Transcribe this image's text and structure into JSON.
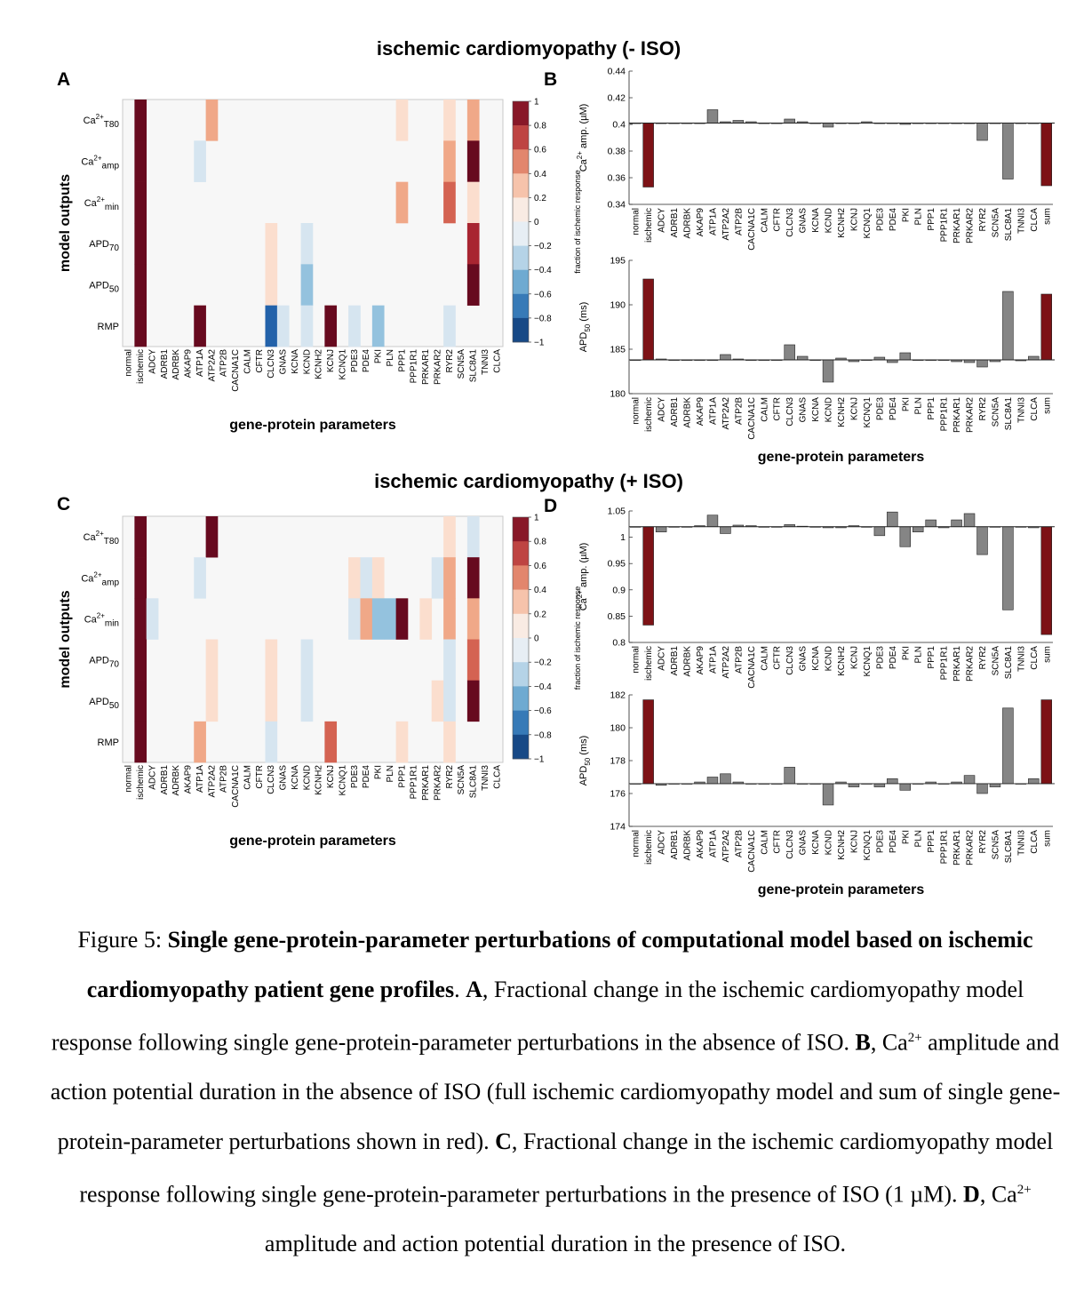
{
  "titles": {
    "top": "ischemic cardiomyopathy (- ISO)",
    "bottom": "ischemic cardiomyopathy (+ ISO)"
  },
  "panel_letters": [
    "A",
    "B",
    "C",
    "D"
  ],
  "colors": {
    "ischemic_bar": "#7d1216",
    "sum_bar": "#7d1216",
    "other_bar": "#858585",
    "heatmap_background": "#f7f7f7"
  },
  "caption": {
    "figure_label": "Figure  5: ",
    "bold_title": "Single gene-protein-parameter perturbations of computational model based on ischemic cardiomyopathy patient gene profiles",
    "period": ". ",
    "A_label": "A",
    "A_text": ", Fractional change in the ischemic cardiomyopathy model response following single gene-protein-parameter perturbations in the absence of ISO. ",
    "B_label": "B",
    "B_text_1": ", Ca",
    "B_sup": "2+",
    "B_text_2": " amplitude and action potential duration in the absence of ISO (full ischemic cardiomyopathy model and sum of single gene-protein-parameter perturbations shown in red). ",
    "C_label": "C",
    "C_text": ", Fractional change in the ischemic cardiomyopathy model response following single gene-protein-parameter perturbations in the presence of ISO (1 µM). ",
    "D_label": "D",
    "D_text_1": ", Ca",
    "D_sup": "2+",
    "D_text_2": " amplitude and action potential duration in the presence of ISO."
  },
  "chart_data": [
    {
      "id": "A",
      "type": "heatmap",
      "xlabel": "gene-protein parameters",
      "ylabel": "model outputs",
      "columns": [
        "normal",
        "ischemic",
        "ADCY",
        "ADRB1",
        "ADRBK",
        "AKAP9",
        "ATP1A",
        "ATP2A2",
        "ATP2B",
        "CACNA1C",
        "CALM",
        "CFTR",
        "CLCN3",
        "GNAS",
        "KCNA",
        "KCND",
        "KCNH2",
        "KCNJ",
        "KCNQ1",
        "PDE3",
        "PDE4",
        "PKI",
        "PLN",
        "PPP1",
        "PPP1R1",
        "PRKAR1",
        "PRKAR2",
        "RYR2",
        "SCN5A",
        "SLC8A1",
        "TNNI3",
        "CLCA"
      ],
      "rows": [
        {
          "base": "Ca",
          "sup": "2+",
          "sub": "T80"
        },
        {
          "base": "Ca",
          "sup": "2+",
          "sub": "amp"
        },
        {
          "base": "Ca",
          "sup": "2+",
          "sub": "min"
        },
        {
          "base": "APD",
          "sup": "",
          "sub": "70"
        },
        {
          "base": "APD",
          "sup": "",
          "sub": "50"
        },
        {
          "base": "RMP",
          "sup": "",
          "sub": ""
        }
      ],
      "values": [
        [
          0,
          1,
          0,
          0,
          0,
          0,
          0,
          0.4,
          0,
          0,
          0,
          0,
          0,
          0,
          0,
          0,
          0,
          0,
          0,
          0,
          0,
          0,
          0,
          0.2,
          0,
          0,
          0,
          0.2,
          0,
          0.4,
          0,
          0
        ],
        [
          0,
          1,
          0,
          0,
          0,
          0,
          -0.2,
          0,
          0,
          0,
          0,
          0,
          0,
          0,
          0,
          0,
          0,
          0,
          0,
          0,
          0,
          0,
          0,
          0,
          0,
          0,
          0,
          0.4,
          0,
          1,
          0,
          0
        ],
        [
          0,
          1,
          0,
          0,
          0,
          0,
          0,
          0,
          0,
          0,
          0,
          0,
          0,
          0,
          0,
          0,
          0,
          0,
          0,
          0,
          0,
          0,
          0,
          0.4,
          0,
          0,
          0,
          0.6,
          0,
          0.2,
          0,
          0
        ],
        [
          0,
          1,
          0,
          0,
          0,
          0,
          0,
          0,
          0,
          0,
          0,
          0,
          0.2,
          0,
          0,
          -0.2,
          0,
          0,
          0,
          0,
          0,
          0,
          0,
          0,
          0,
          0,
          0,
          0,
          0,
          0.8,
          0,
          0
        ],
        [
          0,
          1,
          0,
          0,
          0,
          0,
          0,
          0,
          0,
          0,
          0,
          0,
          0.2,
          0,
          0,
          -0.4,
          0,
          0,
          0,
          0,
          0,
          0,
          0,
          0,
          0,
          0,
          0,
          0,
          0,
          1,
          0,
          0
        ],
        [
          0,
          1,
          0,
          0,
          0,
          0,
          1,
          0,
          0,
          0,
          0,
          0,
          -0.8,
          -0.2,
          0,
          -0.2,
          0,
          1,
          0,
          -0.2,
          0,
          -0.4,
          0,
          0,
          0,
          0,
          0,
          -0.2,
          0,
          0,
          0,
          0
        ]
      ],
      "colorbar": {
        "label": "fraction of ischemic response",
        "ticks": [
          1,
          0.8,
          0.6,
          0.4,
          0.2,
          0,
          -0.2,
          -0.4,
          -0.6,
          -0.8,
          -1
        ],
        "tick_labels": [
          "1",
          "0.8",
          "0.6",
          "0.4",
          "0.2",
          "0",
          "−0.2",
          "−0.4",
          "−0.6",
          "−0.8",
          "−1"
        ]
      }
    },
    {
      "id": "B1",
      "type": "bar",
      "ylabel": {
        "pre": "Ca",
        "sup": "2+",
        "post": " amp. (µM)"
      },
      "categories": [
        "normal",
        "ischemic",
        "ADCY",
        "ADRB1",
        "ADRBK",
        "AKAP9",
        "ATP1A",
        "ATP2A2",
        "ATP2B",
        "CACNA1C",
        "CALM",
        "CFTR",
        "CLCN3",
        "GNAS",
        "KCNA",
        "KCND",
        "KCNH2",
        "KCNJ",
        "KCNQ1",
        "PDE3",
        "PDE4",
        "PKI",
        "PLN",
        "PPP1",
        "PPP1R1",
        "PRKAR1",
        "PRKAR2",
        "RYR2",
        "SCN5A",
        "SLC8A1",
        "TNNI3",
        "CLCA",
        "sum"
      ],
      "baseline": 0.401,
      "values": [
        0.401,
        0.353,
        0.401,
        0.401,
        0.401,
        0.401,
        0.411,
        0.402,
        0.403,
        0.402,
        0.401,
        0.401,
        0.404,
        0.402,
        0.401,
        0.398,
        0.401,
        0.401,
        0.402,
        0.401,
        0.401,
        0.4,
        0.401,
        0.401,
        0.401,
        0.401,
        0.401,
        0.388,
        0.401,
        0.359,
        0.401,
        0.401,
        0.354
      ],
      "ylim": [
        0.34,
        0.44
      ],
      "yticks": [
        0.34,
        0.36,
        0.38,
        0.4,
        0.42,
        0.44
      ],
      "ytick_labels": [
        "0.34",
        "0.36",
        "0.38",
        "0.4",
        "0.42",
        "0.44"
      ],
      "show_xlabel": false
    },
    {
      "id": "B2",
      "type": "bar",
      "ylabel": {
        "pre": "APD",
        "sub": "50",
        "post": " (ms)"
      },
      "xlabel": "gene-protein parameters",
      "categories": [
        "normal",
        "ischemic",
        "ADCY",
        "ADRB1",
        "ADRBK",
        "AKAP9",
        "ATP1A",
        "ATP2A2",
        "ATP2B",
        "CACNA1C",
        "CALM",
        "CFTR",
        "CLCN3",
        "GNAS",
        "KCNA",
        "KCND",
        "KCNH2",
        "KCNJ",
        "KCNQ1",
        "PDE3",
        "PDE4",
        "PKI",
        "PLN",
        "PPP1",
        "PPP1R1",
        "PRKAR1",
        "PRKAR2",
        "RYR2",
        "SCN5A",
        "SLC8A1",
        "TNNI3",
        "CLCA",
        "sum"
      ],
      "baseline": 183.8,
      "values": [
        183.8,
        192.9,
        183.9,
        183.8,
        183.8,
        183.8,
        183.8,
        184.4,
        183.9,
        183.8,
        183.8,
        183.8,
        185.5,
        184.2,
        183.8,
        181.3,
        184.0,
        183.6,
        183.8,
        184.1,
        183.5,
        184.6,
        183.8,
        183.8,
        183.8,
        183.6,
        183.5,
        183.0,
        183.6,
        191.5,
        183.7,
        184.2,
        191.2
      ],
      "ylim": [
        180,
        195
      ],
      "yticks": [
        180,
        185,
        190,
        195
      ],
      "ytick_labels": [
        "180",
        "185",
        "190",
        "195"
      ],
      "show_xlabel": true
    },
    {
      "id": "C",
      "type": "heatmap",
      "xlabel": "gene-protein parameters",
      "ylabel": "model outputs",
      "columns": [
        "normal",
        "ischemic",
        "ADCY",
        "ADRB1",
        "ADRBK",
        "AKAP9",
        "ATP1A",
        "ATP2A2",
        "ATP2B",
        "CACNA1C",
        "CALM",
        "CFTR",
        "CLCN3",
        "GNAS",
        "KCNA",
        "KCND",
        "KCNH2",
        "KCNJ",
        "KCNQ1",
        "PDE3",
        "PDE4",
        "PKI",
        "PLN",
        "PPP1",
        "PPP1R1",
        "PRKAR1",
        "PRKAR2",
        "RYR2",
        "SCN5A",
        "SLC8A1",
        "TNNI3",
        "CLCA"
      ],
      "rows": [
        {
          "base": "Ca",
          "sup": "2+",
          "sub": "T80"
        },
        {
          "base": "Ca",
          "sup": "2+",
          "sub": "amp"
        },
        {
          "base": "Ca",
          "sup": "2+",
          "sub": "min"
        },
        {
          "base": "APD",
          "sup": "",
          "sub": "70"
        },
        {
          "base": "APD",
          "sup": "",
          "sub": "50"
        },
        {
          "base": "RMP",
          "sup": "",
          "sub": ""
        }
      ],
      "values": [
        [
          0,
          1,
          0,
          0,
          0,
          0,
          0,
          1,
          0,
          0,
          0,
          0,
          0,
          0,
          0,
          0,
          0,
          0,
          0,
          0,
          0,
          0,
          0,
          0,
          0,
          0,
          0,
          0.2,
          0,
          -0.2,
          0,
          0
        ],
        [
          0,
          1,
          0,
          0,
          0,
          0,
          -0.2,
          0,
          0,
          0,
          0,
          0,
          0,
          0,
          0,
          0,
          0,
          0,
          0,
          0.2,
          -0.2,
          0.2,
          0,
          0,
          0,
          0,
          -0.2,
          0.4,
          0,
          1,
          0,
          0
        ],
        [
          0,
          1,
          -0.2,
          0,
          0,
          0,
          0,
          0,
          0,
          0,
          0,
          0,
          0,
          0,
          0,
          0,
          0,
          0,
          0,
          -0.2,
          0.4,
          -0.4,
          -0.4,
          1,
          0,
          0.2,
          0,
          0.4,
          0,
          0.4,
          0,
          0
        ],
        [
          0,
          1,
          0,
          0,
          0,
          0,
          0,
          0.2,
          0,
          0,
          0,
          0,
          0.2,
          0,
          0,
          -0.2,
          0,
          0,
          0,
          0,
          0,
          0,
          0,
          0,
          0,
          0,
          0,
          -0.2,
          0,
          0.6,
          0,
          0
        ],
        [
          0,
          1,
          0,
          0,
          0,
          0,
          0,
          0.2,
          0,
          0,
          0,
          0,
          0.2,
          0,
          0,
          -0.2,
          0,
          0,
          0,
          0,
          0,
          0,
          0,
          0,
          0,
          0,
          0.2,
          -0.2,
          0,
          1,
          0,
          0
        ],
        [
          0,
          1,
          0,
          0,
          0,
          0,
          0.4,
          0,
          0,
          0,
          0,
          0,
          -0.2,
          0,
          0,
          0,
          0,
          0.6,
          0,
          0,
          0,
          0,
          0,
          0.2,
          0,
          0,
          0,
          0.2,
          0,
          0,
          0,
          0
        ]
      ],
      "colorbar": {
        "label": "fraction of ischemic response",
        "ticks": [
          1,
          0.8,
          0.6,
          0.4,
          0.2,
          0,
          -0.2,
          -0.4,
          -0.6,
          -0.8,
          -1
        ],
        "tick_labels": [
          "1",
          "0.8",
          "0.6",
          "0.4",
          "0.2",
          "0",
          "−0.2",
          "−0.4",
          "−0.6",
          "−0.8",
          "−1"
        ]
      }
    },
    {
      "id": "D1",
      "type": "bar",
      "ylabel": {
        "pre": "Ca",
        "sup": "2+",
        "post": " amp. (µM)"
      },
      "categories": [
        "normal",
        "ischemic",
        "ADCY",
        "ADRB1",
        "ADRBK",
        "AKAP9",
        "ATP1A",
        "ATP2A2",
        "ATP2B",
        "CACNA1C",
        "CALM",
        "CFTR",
        "CLCN3",
        "GNAS",
        "KCNA",
        "KCND",
        "KCNH2",
        "KCNJ",
        "KCNQ1",
        "PDE3",
        "PDE4",
        "PKI",
        "PLN",
        "PPP1",
        "PPP1R1",
        "PRKAR1",
        "PRKAR2",
        "RYR2",
        "SCN5A",
        "SLC8A1",
        "TNNI3",
        "CLCA",
        "sum"
      ],
      "baseline": 1.02,
      "values": [
        1.02,
        0.833,
        1.01,
        1.02,
        1.02,
        1.022,
        1.042,
        1.007,
        1.023,
        1.022,
        1.02,
        1.02,
        1.024,
        1.021,
        1.02,
        1.018,
        1.018,
        1.022,
        1.02,
        1.003,
        1.048,
        0.982,
        1.01,
        1.033,
        1.018,
        1.033,
        1.045,
        0.967,
        1.02,
        0.862,
        1.02,
        1.018,
        0.815
      ],
      "ylim": [
        0.8,
        1.05
      ],
      "yticks": [
        0.8,
        0.85,
        0.9,
        0.95,
        1,
        1.05
      ],
      "ytick_labels": [
        "0.8",
        "0.85",
        "0.9",
        "0.95",
        "1",
        "1.05"
      ],
      "show_xlabel": false
    },
    {
      "id": "D2",
      "type": "bar",
      "ylabel": {
        "pre": "APD",
        "sub": "50",
        "post": " (ms)"
      },
      "xlabel": "gene-protein parameters",
      "categories": [
        "normal",
        "ischemic",
        "ADCY",
        "ADRB1",
        "ADRBK",
        "AKAP9",
        "ATP1A",
        "ATP2A2",
        "ATP2B",
        "CACNA1C",
        "CALM",
        "CFTR",
        "CLCN3",
        "GNAS",
        "KCNA",
        "KCND",
        "KCNH2",
        "KCNJ",
        "KCNQ1",
        "PDE3",
        "PDE4",
        "PKI",
        "PLN",
        "PPP1",
        "PPP1R1",
        "PRKAR1",
        "PRKAR2",
        "RYR2",
        "SCN5A",
        "SLC8A1",
        "TNNI3",
        "CLCA",
        "sum"
      ],
      "baseline": 176.6,
      "values": [
        176.6,
        181.7,
        176.5,
        176.6,
        176.6,
        176.7,
        177.0,
        177.2,
        176.7,
        176.6,
        176.6,
        176.6,
        177.6,
        176.6,
        176.6,
        175.3,
        176.7,
        176.4,
        176.6,
        176.4,
        176.9,
        176.2,
        176.6,
        176.7,
        176.6,
        176.7,
        177.1,
        176.0,
        176.4,
        181.2,
        176.6,
        176.9,
        181.7
      ],
      "ylim": [
        174,
        182
      ],
      "yticks": [
        174,
        176,
        178,
        180,
        182
      ],
      "ytick_labels": [
        "174",
        "176",
        "178",
        "180",
        "182"
      ],
      "show_xlabel": true
    }
  ]
}
